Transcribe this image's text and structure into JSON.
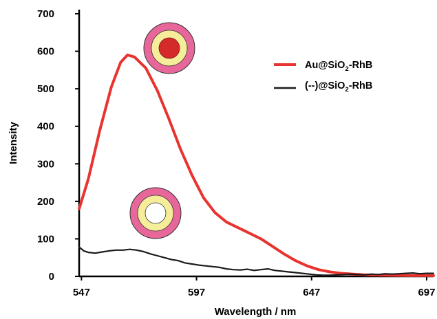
{
  "chart_data": {
    "type": "line",
    "xlabel": "Wavelength / nm",
    "ylabel": "Intensity",
    "xlim": [
      546,
      700
    ],
    "ylim": [
      0,
      700
    ],
    "x_ticks": [
      547,
      597,
      647,
      697
    ],
    "y_ticks": [
      0,
      100,
      200,
      300,
      400,
      500,
      600,
      700
    ],
    "grid": false,
    "legend_position": "top-right",
    "series": [
      {
        "name_prefix": "Au@SiO",
        "name_sub": "2",
        "name_suffix": "-RhB",
        "color": "#e8332f",
        "points": [
          [
            546,
            180
          ],
          [
            550,
            260
          ],
          [
            555,
            390
          ],
          [
            560,
            505
          ],
          [
            564,
            570
          ],
          [
            567,
            590
          ],
          [
            570,
            585
          ],
          [
            575,
            555
          ],
          [
            580,
            495
          ],
          [
            585,
            420
          ],
          [
            590,
            340
          ],
          [
            595,
            270
          ],
          [
            600,
            210
          ],
          [
            605,
            170
          ],
          [
            610,
            145
          ],
          [
            615,
            130
          ],
          [
            620,
            115
          ],
          [
            625,
            100
          ],
          [
            630,
            80
          ],
          [
            635,
            60
          ],
          [
            640,
            42
          ],
          [
            645,
            28
          ],
          [
            650,
            18
          ],
          [
            655,
            12
          ],
          [
            660,
            8
          ],
          [
            665,
            6
          ],
          [
            670,
            4
          ],
          [
            680,
            3
          ],
          [
            690,
            2
          ],
          [
            700,
            2
          ]
        ]
      },
      {
        "name_prefix": "(--)@SiO",
        "name_sub": "2",
        "name_suffix": "-RhB",
        "color": "#1a1a1a",
        "points": [
          [
            546,
            78
          ],
          [
            548,
            68
          ],
          [
            550,
            64
          ],
          [
            553,
            62
          ],
          [
            556,
            65
          ],
          [
            559,
            68
          ],
          [
            562,
            70
          ],
          [
            565,
            70
          ],
          [
            568,
            72
          ],
          [
            571,
            70
          ],
          [
            574,
            66
          ],
          [
            577,
            60
          ],
          [
            580,
            55
          ],
          [
            583,
            50
          ],
          [
            586,
            45
          ],
          [
            589,
            42
          ],
          [
            592,
            36
          ],
          [
            595,
            33
          ],
          [
            598,
            30
          ],
          [
            601,
            28
          ],
          [
            604,
            26
          ],
          [
            607,
            24
          ],
          [
            610,
            20
          ],
          [
            613,
            18
          ],
          [
            616,
            17
          ],
          [
            619,
            19
          ],
          [
            622,
            16
          ],
          [
            625,
            18
          ],
          [
            628,
            20
          ],
          [
            631,
            16
          ],
          [
            634,
            14
          ],
          [
            637,
            12
          ],
          [
            640,
            10
          ],
          [
            643,
            8
          ],
          [
            646,
            6
          ],
          [
            649,
            4
          ],
          [
            652,
            3
          ],
          [
            655,
            3
          ],
          [
            658,
            4
          ],
          [
            661,
            5
          ],
          [
            664,
            6
          ],
          [
            667,
            5
          ],
          [
            670,
            4
          ],
          [
            673,
            6
          ],
          [
            676,
            5
          ],
          [
            679,
            7
          ],
          [
            682,
            6
          ],
          [
            685,
            7
          ],
          [
            688,
            8
          ],
          [
            691,
            9
          ],
          [
            694,
            7
          ],
          [
            697,
            8
          ],
          [
            700,
            8
          ]
        ]
      }
    ]
  }
}
